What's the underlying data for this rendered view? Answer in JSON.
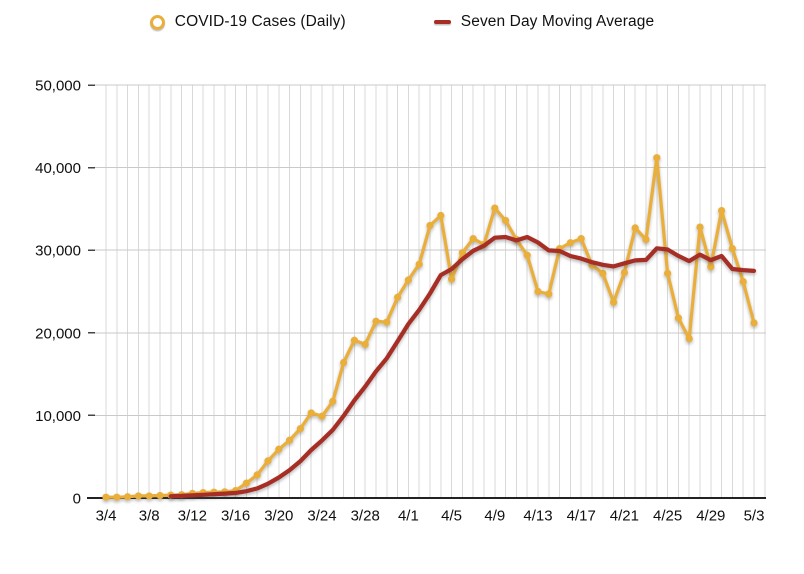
{
  "legend": {
    "daily_label": "COVID-19 Cases (Daily)",
    "avg_label": "Seven Day Moving Average"
  },
  "colors": {
    "daily_series": "#EAAF3B",
    "avg_series": "#A62E24",
    "vertical_grid": "#D9D9D9",
    "horizontal_grid": "#C9C9C9",
    "axis_line": "#222222",
    "label_text": "#0F0F0F",
    "background": "#FFFFFF"
  },
  "chart_data": {
    "type": "line",
    "title": "",
    "xlabel": "",
    "ylabel": "",
    "ylim": [
      0,
      50000
    ],
    "y_ticks": [
      0,
      10000,
      20000,
      30000,
      40000,
      50000
    ],
    "y_tick_labels": [
      "0",
      "10,000",
      "20,000",
      "30,000",
      "40,000",
      "50,000"
    ],
    "grid": "vertical line per day; horizontal line per 10,000",
    "legend_position": "top-center",
    "x": [
      "3/4",
      "3/5",
      "3/6",
      "3/7",
      "3/8",
      "3/9",
      "3/10",
      "3/11",
      "3/12",
      "3/13",
      "3/14",
      "3/15",
      "3/16",
      "3/17",
      "3/18",
      "3/19",
      "3/20",
      "3/21",
      "3/22",
      "3/23",
      "3/24",
      "3/25",
      "3/26",
      "3/27",
      "3/28",
      "3/29",
      "3/30",
      "3/31",
      "4/1",
      "4/2",
      "4/3",
      "4/4",
      "4/5",
      "4/6",
      "4/7",
      "4/8",
      "4/9",
      "4/10",
      "4/11",
      "4/12",
      "4/13",
      "4/14",
      "4/15",
      "4/16",
      "4/17",
      "4/18",
      "4/19",
      "4/20",
      "4/21",
      "4/22",
      "4/23",
      "4/24",
      "4/25",
      "4/26",
      "4/27",
      "4/28",
      "4/29",
      "4/30",
      "5/1",
      "5/2",
      "5/3"
    ],
    "x_tick_labels": [
      "3/4",
      "3/8",
      "3/12",
      "3/16",
      "3/20",
      "3/24",
      "3/28",
      "4/1",
      "4/5",
      "4/9",
      "4/13",
      "4/17",
      "4/21",
      "4/25",
      "4/29",
      "5/3"
    ],
    "x_tick_every": 4,
    "series": [
      {
        "name": "COVID-19 Cases (Daily)",
        "color": "#EAAF3B",
        "marker": "circle",
        "values": [
          100,
          100,
          150,
          250,
          250,
          300,
          350,
          400,
          550,
          650,
          700,
          750,
          900,
          1800,
          2800,
          4500,
          5900,
          7000,
          8400,
          10300,
          9900,
          11700,
          16400,
          19100,
          18600,
          21400,
          21300,
          24300,
          26400,
          28300,
          33000,
          34200,
          26500,
          29700,
          31400,
          30700,
          35100,
          33600,
          31300,
          29400,
          25000,
          24700,
          30200,
          30900,
          31400,
          28200,
          27200,
          23700,
          27300,
          32700,
          31300,
          41200,
          27200,
          21800,
          19300,
          32800,
          28000,
          34800,
          30200,
          26200,
          21200
        ]
      },
      {
        "name": "Seven Day Moving Average",
        "color": "#A62E24",
        "marker": "none",
        "values": [
          null,
          null,
          null,
          null,
          null,
          null,
          214,
          257,
          321,
          393,
          457,
          529,
          614,
          821,
          1164,
          1729,
          2479,
          3379,
          4471,
          5814,
          6971,
          8243,
          9943,
          11829,
          13486,
          15343,
          16914,
          18971,
          21071,
          22771,
          24757,
          26986,
          27714,
          28914,
          29929,
          30543,
          31514,
          31600,
          31186,
          31600,
          30929,
          29971,
          29900,
          29300,
          28986,
          28543,
          28229,
          28043,
          28414,
          28771,
          28829,
          30229,
          30086,
          29314,
          28686,
          29471,
          28800,
          29300,
          27729,
          27586,
          27500
        ]
      }
    ]
  }
}
